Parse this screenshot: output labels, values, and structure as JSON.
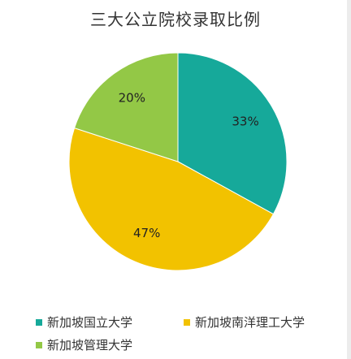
{
  "chart_data": {
    "type": "pie",
    "title": "三大公立院校录取比例",
    "categories": [
      "新加坡国立大学",
      "新加坡南洋理工大学",
      "新加坡管理大学"
    ],
    "values": [
      33,
      47,
      20
    ],
    "labels": [
      "33%",
      "47%",
      "20%"
    ],
    "colors": [
      "#16a99a",
      "#f2c200",
      "#93c846"
    ],
    "start_angle_deg": 0,
    "direction": "clockwise",
    "legend_position": "bottom"
  }
}
